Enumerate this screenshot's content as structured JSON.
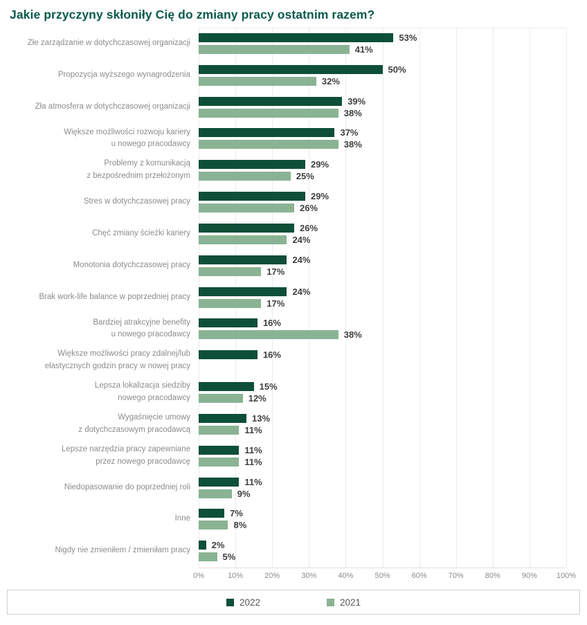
{
  "title": "Jakie przyczyny skłoniły Cię do zmiany pracy ostatnim razem?",
  "colors": {
    "series_2022": "#0d4f38",
    "series_2021": "#8ab394",
    "title_text": "#0a5a4a",
    "category_label": "#8c8c8c",
    "value_label": "#3f3f3f",
    "gridline": "#ebebeb"
  },
  "chart_data": {
    "type": "bar",
    "orientation": "horizontal",
    "title": "Jakie przyczyny skłoniły Cię do zmiany pracy ostatnim razem?",
    "xlabel": "",
    "ylabel": "",
    "xlim": [
      0,
      100
    ],
    "grid": true,
    "legend_position": "bottom",
    "x_ticks": [
      "0%",
      "10%",
      "20%",
      "30%",
      "40%",
      "50%",
      "60%",
      "70%",
      "80%",
      "90%",
      "100%"
    ],
    "categories": [
      "Złe zarządzanie w dotychczasowej organizacji",
      "Propozycja wyższego wynagrodzenia",
      "Zła atmosfera w dotychczasowej organizacji",
      "Większe możliwości rozwoju kariery\nu nowego pracodawcy",
      "Problemy z komunikacją\nz bezpośrednim przełożonym",
      "Stres w dotychczasowej pracy",
      "Chęć zmiany ścieżki kariery",
      "Monotonia dotychczasowej pracy",
      "Brak work-life balance w poprzedniej pracy",
      "Bardziej atrakcyjne benefity\nu nowego pracodawcy",
      "Większe możliwości pracy zdalnej/lub\nelastycznych godzin pracy w nowej pracy",
      "Lepsza lokalizacja siedziby\nnowego pracodawcy",
      "Wygaśnięcie umowy\nz dotychczasowym pracodawcą",
      "Lepsze narzędzia pracy zapewniane\nprzez nowego pracodawcę",
      "Niedopasowanie do poprzedniej roli",
      "Inne",
      "Nigdy nie zmieniłem / zmieniłam pracy"
    ],
    "series": [
      {
        "name": "2022",
        "color": "#0d4f38",
        "values": [
          53,
          50,
          39,
          37,
          29,
          29,
          26,
          24,
          24,
          16,
          16,
          15,
          13,
          11,
          11,
          7,
          2
        ]
      },
      {
        "name": "2021",
        "color": "#8ab394",
        "values": [
          41,
          32,
          38,
          38,
          25,
          26,
          24,
          17,
          17,
          38,
          null,
          12,
          11,
          11,
          9,
          8,
          5
        ]
      }
    ],
    "value_suffix": "%"
  }
}
